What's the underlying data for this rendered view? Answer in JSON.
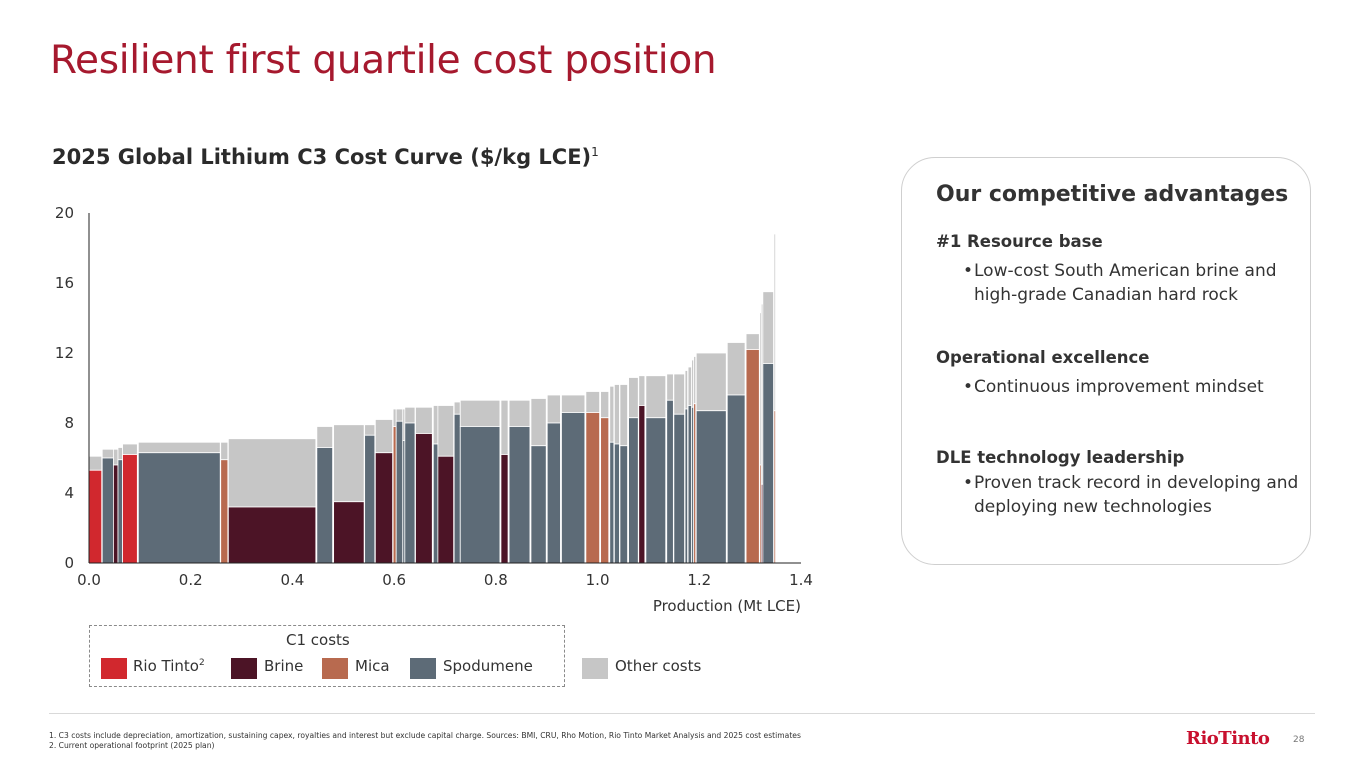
{
  "title": "Resilient first quartile cost position",
  "chart_heading": {
    "text": "2025 Global Lithium C3 Cost Curve ($/kg LCE)",
    "footnote_ref": "1"
  },
  "chart_data": {
    "type": "bar",
    "subtype": "cost-curve-variable-width",
    "title": "2025 Global Lithium C3 Cost Curve ($/kg LCE)",
    "xlabel": "Production (Mt LCE)",
    "ylabel": "",
    "xlim": [
      0.0,
      1.4
    ],
    "ylim": [
      0,
      20
    ],
    "x_ticks": [
      "0.0",
      "0.2",
      "0.4",
      "0.6",
      "0.8",
      "1.0",
      "1.2",
      "1.4"
    ],
    "y_ticks": [
      "0",
      "4",
      "8",
      "12",
      "16",
      "20"
    ],
    "colors": {
      "rio": "#d1282e",
      "brine": "#4c1426",
      "mica": "#b86a4f",
      "spod": "#5d6b77",
      "other": "#c6c6c6"
    },
    "series": [
      {
        "name": "Rio Tinto",
        "key": "rio"
      },
      {
        "name": "Brine",
        "key": "brine"
      },
      {
        "name": "Mica",
        "key": "mica"
      },
      {
        "name": "Spodumene",
        "key": "spod"
      },
      {
        "name": "Other costs",
        "key": "other"
      }
    ],
    "columns": [
      {
        "x0": 0.0,
        "x1": 0.025,
        "c1": 5.3,
        "c3": 6.1,
        "cat": "rio"
      },
      {
        "x0": 0.026,
        "x1": 0.048,
        "c1": 6.0,
        "c3": 6.5,
        "cat": "spod"
      },
      {
        "x0": 0.048,
        "x1": 0.057,
        "c1": 5.6,
        "c3": 6.5,
        "cat": "brine"
      },
      {
        "x0": 0.057,
        "x1": 0.066,
        "c1": 5.9,
        "c3": 6.6,
        "cat": "spod"
      },
      {
        "x0": 0.066,
        "x1": 0.095,
        "c1": 6.2,
        "c3": 6.8,
        "cat": "rio"
      },
      {
        "x0": 0.097,
        "x1": 0.258,
        "c1": 6.3,
        "c3": 6.9,
        "cat": "spod"
      },
      {
        "x0": 0.259,
        "x1": 0.273,
        "c1": 5.9,
        "c3": 6.9,
        "cat": "mica"
      },
      {
        "x0": 0.274,
        "x1": 0.446,
        "c1": 3.2,
        "c3": 7.1,
        "cat": "brine"
      },
      {
        "x0": 0.448,
        "x1": 0.479,
        "c1": 6.6,
        "c3": 7.8,
        "cat": "spod"
      },
      {
        "x0": 0.481,
        "x1": 0.541,
        "c1": 3.5,
        "c3": 7.9,
        "cat": "brine"
      },
      {
        "x0": 0.542,
        "x1": 0.562,
        "c1": 7.3,
        "c3": 7.9,
        "cat": "spod"
      },
      {
        "x0": 0.563,
        "x1": 0.597,
        "c1": 6.3,
        "c3": 8.2,
        "cat": "brine"
      },
      {
        "x0": 0.598,
        "x1": 0.604,
        "c1": 7.8,
        "c3": 8.8,
        "cat": "mica"
      },
      {
        "x0": 0.604,
        "x1": 0.617,
        "c1": 8.1,
        "c3": 8.8,
        "cat": "spod"
      },
      {
        "x0": 0.617,
        "x1": 0.621,
        "c1": 7.0,
        "c3": 8.8,
        "cat": "spod"
      },
      {
        "x0": 0.621,
        "x1": 0.641,
        "c1": 8.0,
        "c3": 8.9,
        "cat": "spod"
      },
      {
        "x0": 0.642,
        "x1": 0.675,
        "c1": 7.4,
        "c3": 8.9,
        "cat": "brine"
      },
      {
        "x0": 0.677,
        "x1": 0.686,
        "c1": 6.8,
        "c3": 9.0,
        "cat": "spod"
      },
      {
        "x0": 0.686,
        "x1": 0.717,
        "c1": 6.1,
        "c3": 9.0,
        "cat": "brine"
      },
      {
        "x0": 0.718,
        "x1": 0.73,
        "c1": 8.5,
        "c3": 9.2,
        "cat": "spod"
      },
      {
        "x0": 0.73,
        "x1": 0.808,
        "c1": 7.8,
        "c3": 9.3,
        "cat": "spod"
      },
      {
        "x0": 0.81,
        "x1": 0.824,
        "c1": 6.2,
        "c3": 9.3,
        "cat": "brine"
      },
      {
        "x0": 0.826,
        "x1": 0.867,
        "c1": 7.8,
        "c3": 9.3,
        "cat": "spod"
      },
      {
        "x0": 0.869,
        "x1": 0.899,
        "c1": 6.7,
        "c3": 9.4,
        "cat": "spod"
      },
      {
        "x0": 0.901,
        "x1": 0.927,
        "c1": 8.0,
        "c3": 9.6,
        "cat": "spod"
      },
      {
        "x0": 0.929,
        "x1": 0.975,
        "c1": 8.6,
        "c3": 9.6,
        "cat": "spod"
      },
      {
        "x0": 0.977,
        "x1": 1.004,
        "c1": 8.6,
        "c3": 9.8,
        "cat": "mica"
      },
      {
        "x0": 1.006,
        "x1": 1.022,
        "c1": 8.3,
        "c3": 9.8,
        "cat": "mica"
      },
      {
        "x0": 1.024,
        "x1": 1.032,
        "c1": 6.9,
        "c3": 10.1,
        "cat": "spod"
      },
      {
        "x0": 1.033,
        "x1": 1.043,
        "c1": 6.8,
        "c3": 10.2,
        "cat": "spod"
      },
      {
        "x0": 1.044,
        "x1": 1.059,
        "c1": 6.7,
        "c3": 10.2,
        "cat": "spod"
      },
      {
        "x0": 1.061,
        "x1": 1.08,
        "c1": 8.3,
        "c3": 10.6,
        "cat": "spod"
      },
      {
        "x0": 1.081,
        "x1": 1.093,
        "c1": 9.0,
        "c3": 10.7,
        "cat": "brine"
      },
      {
        "x0": 1.095,
        "x1": 1.134,
        "c1": 8.3,
        "c3": 10.7,
        "cat": "spod"
      },
      {
        "x0": 1.136,
        "x1": 1.149,
        "c1": 9.3,
        "c3": 10.8,
        "cat": "spod"
      },
      {
        "x0": 1.15,
        "x1": 1.171,
        "c1": 8.5,
        "c3": 10.8,
        "cat": "spod"
      },
      {
        "x0": 1.172,
        "x1": 1.177,
        "c1": 8.8,
        "c3": 11.0,
        "cat": "spod"
      },
      {
        "x0": 1.178,
        "x1": 1.185,
        "c1": 9.0,
        "c3": 11.2,
        "cat": "spod"
      },
      {
        "x0": 1.185,
        "x1": 1.189,
        "c1": 8.9,
        "c3": 11.6,
        "cat": "spod"
      },
      {
        "x0": 1.189,
        "x1": 1.193,
        "c1": 9.1,
        "c3": 11.8,
        "cat": "mica"
      },
      {
        "x0": 1.194,
        "x1": 1.253,
        "c1": 8.7,
        "c3": 12.0,
        "cat": "spod"
      },
      {
        "x0": 1.255,
        "x1": 1.29,
        "c1": 9.6,
        "c3": 12.6,
        "cat": "spod"
      },
      {
        "x0": 1.292,
        "x1": 1.318,
        "c1": 12.2,
        "c3": 13.1,
        "cat": "mica"
      },
      {
        "x0": 1.319,
        "x1": 1.322,
        "c1": 5.6,
        "c3": 14.3,
        "cat": "mica"
      },
      {
        "x0": 1.322,
        "x1": 1.325,
        "c1": 4.5,
        "c3": 14.8,
        "cat": "brine"
      },
      {
        "x0": 1.325,
        "x1": 1.346,
        "c1": 11.4,
        "c3": 15.5,
        "cat": "spod"
      },
      {
        "x0": 1.347,
        "x1": 1.35,
        "c1": 8.7,
        "c3": 18.8,
        "cat": "mica"
      }
    ]
  },
  "legend": {
    "heading": "C1 costs",
    "items": [
      {
        "label": "Rio Tinto",
        "sup": "2",
        "color": "#d1282e"
      },
      {
        "label": "Brine",
        "color": "#4c1426"
      },
      {
        "label": "Mica",
        "color": "#b86a4f"
      },
      {
        "label": "Spodumene",
        "color": "#5d6b77"
      },
      {
        "label": "Other costs",
        "color": "#c6c6c6"
      }
    ]
  },
  "card": {
    "title": "Our competitive advantages",
    "sections": [
      {
        "heading": "#1 Resource base",
        "bullets": [
          "Low-cost South American brine and high-grade Canadian hard rock"
        ]
      },
      {
        "heading": "Operational excellence",
        "bullets": [
          "Continuous improvement mindset"
        ]
      },
      {
        "heading": "DLE technology leadership",
        "bullets": [
          "Proven track record in developing and deploying new technologies"
        ]
      }
    ]
  },
  "footnotes": [
    "1. C3 costs include depreciation, amortization, sustaining capex, royalties and interest but exclude capital charge. Sources: BMI, CRU, Rho Motion, Rio Tinto Market Analysis and 2025 cost estimates",
    "2. Current operational footprint (2025 plan)"
  ],
  "logo": "RioTinto",
  "page_number": "28"
}
